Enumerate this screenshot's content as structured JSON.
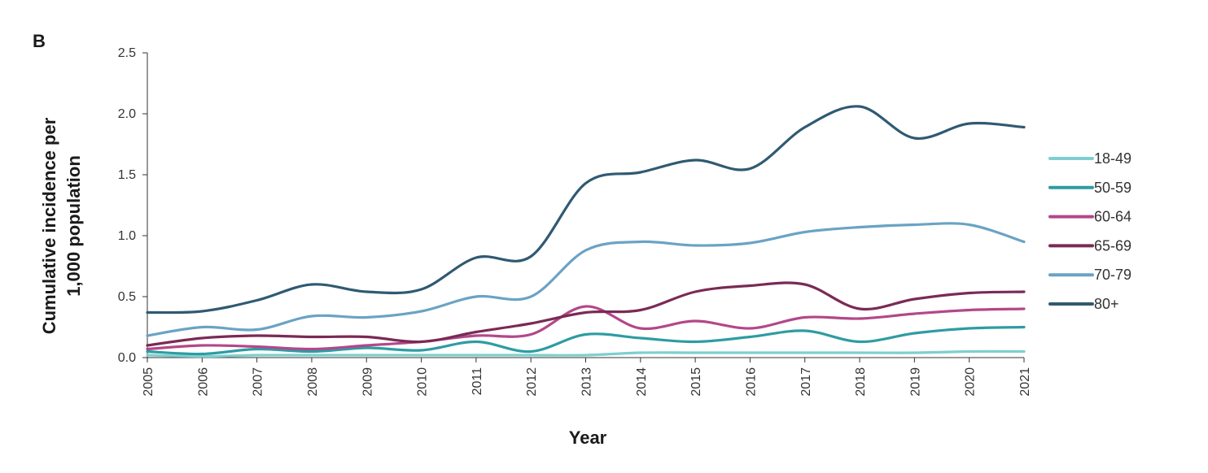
{
  "panel_label": "B",
  "chart_data": {
    "type": "line",
    "xlabel": "Year",
    "ylabel_lines": [
      "Cumulative incidence per",
      "1,000 population"
    ],
    "x": [
      "2005",
      "2006",
      "2007",
      "2008",
      "2009",
      "2010",
      "2011",
      "2012",
      "2013",
      "2014",
      "2015",
      "2016",
      "2017",
      "2018",
      "2019",
      "2020",
      "2021"
    ],
    "ylim": [
      0,
      2.5
    ],
    "yticks": [
      "0.0",
      "0.5",
      "1.0",
      "1.5",
      "2.0",
      "2.5"
    ],
    "grid": false,
    "legend_position": "right",
    "series": [
      {
        "name": "18-49",
        "color": "#7ecfcf",
        "values": [
          0.02,
          0.01,
          0.02,
          0.02,
          0.02,
          0.02,
          0.02,
          0.02,
          0.02,
          0.04,
          0.04,
          0.04,
          0.04,
          0.04,
          0.04,
          0.05,
          0.05
        ]
      },
      {
        "name": "50-59",
        "color": "#2e9ca2",
        "values": [
          0.05,
          0.03,
          0.07,
          0.05,
          0.08,
          0.06,
          0.13,
          0.05,
          0.19,
          0.16,
          0.13,
          0.17,
          0.22,
          0.13,
          0.2,
          0.24,
          0.25
        ]
      },
      {
        "name": "60-64",
        "color": "#b3478a",
        "values": [
          0.07,
          0.1,
          0.09,
          0.07,
          0.1,
          0.13,
          0.18,
          0.19,
          0.42,
          0.24,
          0.3,
          0.24,
          0.33,
          0.32,
          0.36,
          0.39,
          0.4
        ]
      },
      {
        "name": "65-69",
        "color": "#7a2a55",
        "values": [
          0.1,
          0.16,
          0.18,
          0.17,
          0.17,
          0.13,
          0.21,
          0.28,
          0.37,
          0.39,
          0.54,
          0.59,
          0.6,
          0.4,
          0.48,
          0.53,
          0.54
        ]
      },
      {
        "name": "70-79",
        "color": "#6aa3c4",
        "values": [
          0.18,
          0.25,
          0.23,
          0.34,
          0.33,
          0.38,
          0.5,
          0.5,
          0.88,
          0.95,
          0.92,
          0.94,
          1.03,
          1.07,
          1.09,
          1.09,
          0.95
        ]
      },
      {
        "name": "80+",
        "color": "#2f5a72",
        "values": [
          0.37,
          0.38,
          0.47,
          0.6,
          0.54,
          0.56,
          0.82,
          0.83,
          1.43,
          1.52,
          1.62,
          1.55,
          1.89,
          2.06,
          1.8,
          1.92,
          1.89
        ]
      }
    ]
  }
}
